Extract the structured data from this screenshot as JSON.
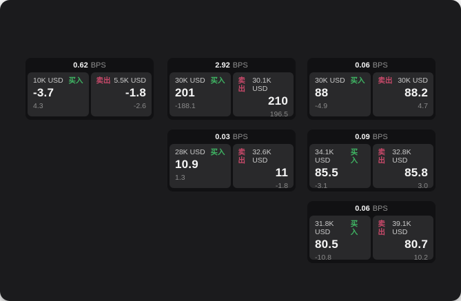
{
  "labels": {
    "bps_suffix": "BPS",
    "buy": "买入",
    "sell": "卖出"
  },
  "colors": {
    "page_background": "#ffffff",
    "canvas_background": "#1b1b1d",
    "card_background": "#111113",
    "panel_background": "#29292b",
    "buy_green": "#3fb463",
    "sell_red": "#c8496a",
    "value_white": "#f5f5f5",
    "muted_gray": "#8a8a8a"
  },
  "cards": [
    {
      "bps": "0.62",
      "buy": {
        "size": "10K USD",
        "value": "-3.7",
        "sub": "4.3"
      },
      "sell": {
        "size": "5.5K USD",
        "value": "-1.8",
        "sub": "-2.6"
      }
    },
    {
      "bps": "2.92",
      "buy": {
        "size": "30K USD",
        "value": "201",
        "sub": "-188.1"
      },
      "sell": {
        "size": "30.1K USD",
        "value": "210",
        "sub": "196.5"
      }
    },
    {
      "bps": "0.06",
      "buy": {
        "size": "30K USD",
        "value": "88",
        "sub": "-4.9"
      },
      "sell": {
        "size": "30K USD",
        "value": "88.2",
        "sub": "4.7"
      }
    },
    {
      "bps": "0.03",
      "buy": {
        "size": "28K USD",
        "value": "10.9",
        "sub": "1.3"
      },
      "sell": {
        "size": "32.6K USD",
        "value": "11",
        "sub": "-1.8"
      }
    },
    {
      "bps": "0.09",
      "buy": {
        "size": "34.1K USD",
        "value": "85.5",
        "sub": "-3.1"
      },
      "sell": {
        "size": "32.8K USD",
        "value": "85.8",
        "sub": "3.0"
      }
    },
    {
      "bps": "0.06",
      "buy": {
        "size": "31.8K USD",
        "value": "80.5",
        "sub": "-10.8"
      },
      "sell": {
        "size": "39.1K USD",
        "value": "80.7",
        "sub": "10.2"
      }
    }
  ]
}
